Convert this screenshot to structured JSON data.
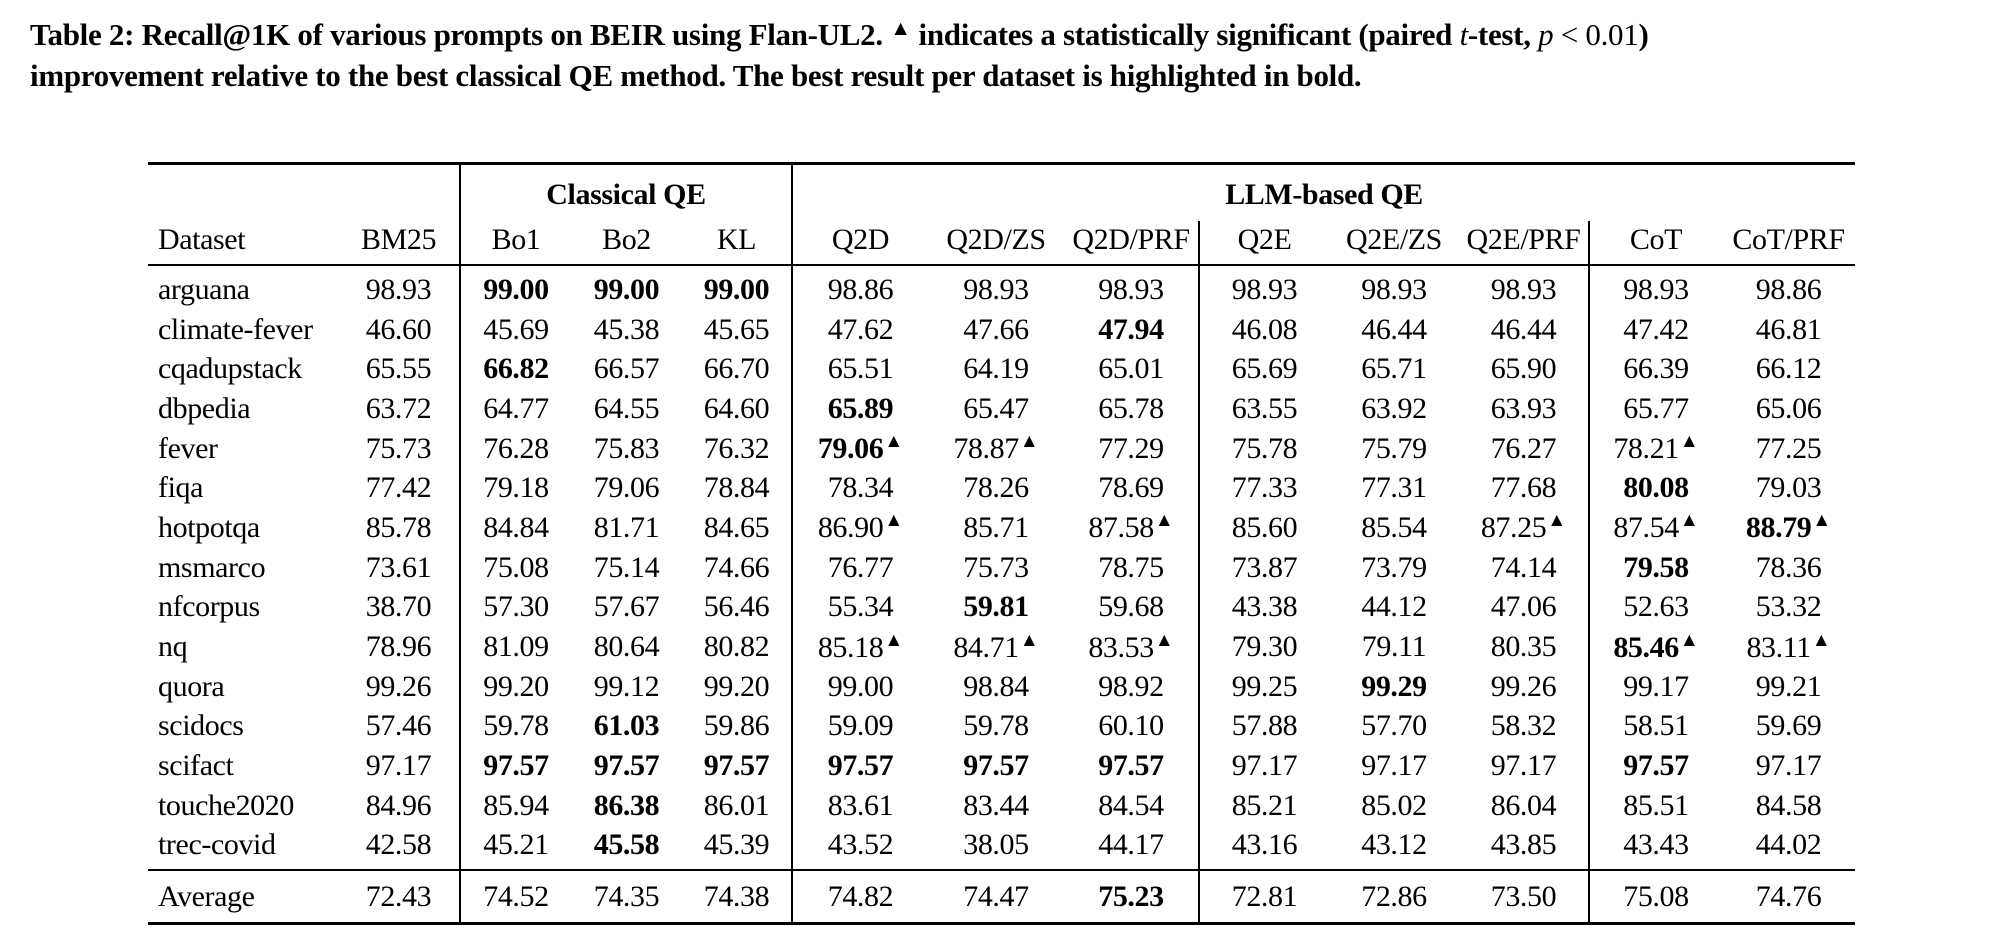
{
  "caption": {
    "segments": [
      {
        "text": "Table 2: Recall@1K of various prompts on BEIR using Flan-UL2. ",
        "style": "bold"
      },
      {
        "text": "▲",
        "style": "sup"
      },
      {
        "text": " indicates a statistically significant (paired ",
        "style": "bold"
      },
      {
        "text": "t",
        "style": "italic"
      },
      {
        "text": "-test, ",
        "style": "bold"
      },
      {
        "text": "p",
        "style": "italic"
      },
      {
        "text": " < 0.01",
        "style": "regular"
      },
      {
        "text": ")",
        "style": "bold"
      },
      {
        "text": "",
        "style": "break"
      },
      {
        "text": "improvement relative to the best classical QE method. The best result per dataset is highlighted in bold.",
        "style": "bold"
      }
    ]
  },
  "marker": {
    "glyph": "▲"
  },
  "table": {
    "groups": [
      {
        "label": "",
        "span": 2
      },
      {
        "label": "Classical QE",
        "span": 3
      },
      {
        "label": "LLM-based QE",
        "span": 8
      }
    ],
    "columns": [
      "Dataset",
      "BM25",
      "Bo1",
      "Bo2",
      "KL",
      "Q2D",
      "Q2D/ZS",
      "Q2D/PRF",
      "Q2E",
      "Q2E/ZS",
      "Q2E/PRF",
      "CoT",
      "CoT/PRF"
    ],
    "rows": [
      {
        "dataset": "arguana",
        "cells": [
          "98.93",
          {
            "v": "99.00",
            "b": 1
          },
          {
            "v": "99.00",
            "b": 1
          },
          {
            "v": "99.00",
            "b": 1
          },
          "98.86",
          "98.93",
          "98.93",
          "98.93",
          "98.93",
          "98.93",
          "98.93",
          "98.86"
        ]
      },
      {
        "dataset": "climate-fever",
        "cells": [
          "46.60",
          "45.69",
          "45.38",
          "45.65",
          "47.62",
          "47.66",
          {
            "v": "47.94",
            "b": 1
          },
          "46.08",
          "46.44",
          "46.44",
          "47.42",
          "46.81"
        ]
      },
      {
        "dataset": "cqadupstack",
        "cells": [
          "65.55",
          {
            "v": "66.82",
            "b": 1
          },
          "66.57",
          "66.70",
          "65.51",
          "64.19",
          "65.01",
          "65.69",
          "65.71",
          "65.90",
          "66.39",
          "66.12"
        ]
      },
      {
        "dataset": "dbpedia",
        "cells": [
          "63.72",
          "64.77",
          "64.55",
          "64.60",
          {
            "v": "65.89",
            "b": 1
          },
          "65.47",
          "65.78",
          "63.55",
          "63.92",
          "63.93",
          "65.77",
          "65.06"
        ]
      },
      {
        "dataset": "fever",
        "cells": [
          "75.73",
          "76.28",
          "75.83",
          "76.32",
          {
            "v": "79.06",
            "b": 1,
            "sig": 1
          },
          {
            "v": "78.87",
            "sig": 1
          },
          "77.29",
          "75.78",
          "75.79",
          "76.27",
          {
            "v": "78.21",
            "sig": 1
          },
          "77.25"
        ]
      },
      {
        "dataset": "fiqa",
        "cells": [
          "77.42",
          "79.18",
          "79.06",
          "78.84",
          "78.34",
          "78.26",
          "78.69",
          "77.33",
          "77.31",
          "77.68",
          {
            "v": "80.08",
            "b": 1
          },
          "79.03"
        ]
      },
      {
        "dataset": "hotpotqa",
        "cells": [
          "85.78",
          "84.84",
          "81.71",
          "84.65",
          {
            "v": "86.90",
            "sig": 1
          },
          "85.71",
          {
            "v": "87.58",
            "sig": 1
          },
          "85.60",
          "85.54",
          {
            "v": "87.25",
            "sig": 1
          },
          {
            "v": "87.54",
            "sig": 1
          },
          {
            "v": "88.79",
            "b": 1,
            "sig": 1
          }
        ]
      },
      {
        "dataset": "msmarco",
        "cells": [
          "73.61",
          "75.08",
          "75.14",
          "74.66",
          "76.77",
          "75.73",
          "78.75",
          "73.87",
          "73.79",
          "74.14",
          {
            "v": "79.58",
            "b": 1
          },
          "78.36"
        ]
      },
      {
        "dataset": "nfcorpus",
        "cells": [
          "38.70",
          "57.30",
          "57.67",
          "56.46",
          "55.34",
          {
            "v": "59.81",
            "b": 1
          },
          "59.68",
          "43.38",
          "44.12",
          "47.06",
          "52.63",
          "53.32"
        ]
      },
      {
        "dataset": "nq",
        "cells": [
          "78.96",
          "81.09",
          "80.64",
          "80.82",
          {
            "v": "85.18",
            "sig": 1
          },
          {
            "v": "84.71",
            "sig": 1
          },
          {
            "v": "83.53",
            "sig": 1
          },
          "79.30",
          "79.11",
          "80.35",
          {
            "v": "85.46",
            "b": 1,
            "sig": 1
          },
          {
            "v": "83.11",
            "sig": 1
          }
        ]
      },
      {
        "dataset": "quora",
        "cells": [
          "99.26",
          "99.20",
          "99.12",
          "99.20",
          "99.00",
          "98.84",
          "98.92",
          "99.25",
          {
            "v": "99.29",
            "b": 1
          },
          "99.26",
          "99.17",
          "99.21"
        ]
      },
      {
        "dataset": "scidocs",
        "cells": [
          "57.46",
          "59.78",
          {
            "v": "61.03",
            "b": 1
          },
          "59.86",
          "59.09",
          "59.78",
          "60.10",
          "57.88",
          "57.70",
          "58.32",
          "58.51",
          "59.69"
        ]
      },
      {
        "dataset": "scifact",
        "cells": [
          "97.17",
          {
            "v": "97.57",
            "b": 1
          },
          {
            "v": "97.57",
            "b": 1
          },
          {
            "v": "97.57",
            "b": 1
          },
          {
            "v": "97.57",
            "b": 1
          },
          {
            "v": "97.57",
            "b": 1
          },
          {
            "v": "97.57",
            "b": 1
          },
          "97.17",
          "97.17",
          "97.17",
          {
            "v": "97.57",
            "b": 1
          },
          "97.17"
        ]
      },
      {
        "dataset": "touche2020",
        "cells": [
          "84.96",
          "85.94",
          {
            "v": "86.38",
            "b": 1
          },
          "86.01",
          "83.61",
          "83.44",
          "84.54",
          "85.21",
          "85.02",
          "86.04",
          "85.51",
          "84.58"
        ]
      },
      {
        "dataset": "trec-covid",
        "cells": [
          "42.58",
          "45.21",
          {
            "v": "45.58",
            "b": 1
          },
          "45.39",
          "43.52",
          "38.05",
          "44.17",
          "43.16",
          "43.12",
          "43.85",
          "43.43",
          "44.02"
        ]
      }
    ],
    "footer": {
      "label": "Average",
      "cells": [
        "72.43",
        "74.52",
        "74.35",
        "74.38",
        "74.82",
        "74.47",
        {
          "v": "75.23",
          "b": 1
        },
        "72.81",
        "72.86",
        "73.50",
        "75.08",
        "74.76"
      ]
    }
  }
}
